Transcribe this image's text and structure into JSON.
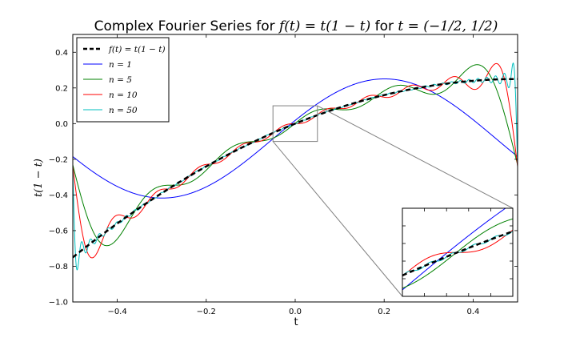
{
  "chart_data": {
    "type": "line",
    "title_prefix": "Complex Fourier Series for ",
    "title_func": "f(t) = t(1 − t)",
    "title_mid": " for ",
    "title_range": "t = (−1/2, 1/2)",
    "xlabel": "t",
    "ylabel": "t(1 − t)",
    "xlim": [
      -0.5,
      0.5
    ],
    "ylim": [
      -1.0,
      0.5
    ],
    "xticks": [
      -0.4,
      -0.2,
      0.0,
      0.2,
      0.4
    ],
    "xtick_labels": [
      "−0.4",
      "−0.2",
      "0.0",
      "0.2",
      "0.4"
    ],
    "yticks": [
      -1.0,
      -0.8,
      -0.6,
      -0.4,
      -0.2,
      0.0,
      0.2,
      0.4
    ],
    "ytick_labels": [
      "−1.0",
      "−0.8",
      "−0.6",
      "−0.4",
      "−0.2",
      "0.0",
      "0.2",
      "0.4"
    ],
    "function": "t*(1-t)",
    "period_interval": [
      -0.5,
      0.5
    ],
    "legend_position": "top-left",
    "series": [
      {
        "name": "f(t) = t(1 − t)",
        "kind": "exact",
        "color": "#000000",
        "dashed": true
      },
      {
        "name": "n = 1",
        "n": 1,
        "color": "#0000ff"
      },
      {
        "name": "n = 5",
        "n": 5,
        "color": "#008000"
      },
      {
        "name": "n = 10",
        "n": 10,
        "color": "#ff0000"
      },
      {
        "name": "n = 50",
        "n": 50,
        "color": "#00bfbf"
      }
    ],
    "inset": {
      "xlim": [
        -0.05,
        0.05
      ],
      "ylim": [
        -0.1,
        0.1
      ],
      "box_color": "#808080"
    }
  }
}
